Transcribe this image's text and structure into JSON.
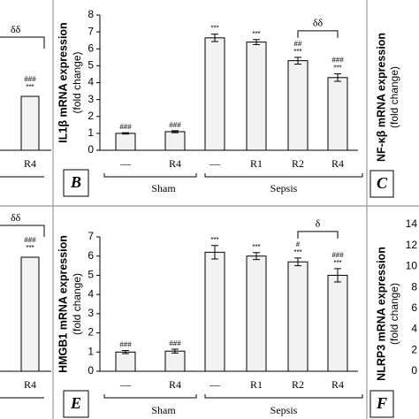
{
  "chart_data": [
    {
      "type": "bar",
      "panel_label": "B",
      "ylabel": "IL1β mRNA expression",
      "ylabel2": "(fold change)",
      "categories": [
        "—",
        "R4",
        "—",
        "R1",
        "R2",
        "R4"
      ],
      "values": [
        1.0,
        1.1,
        6.65,
        6.4,
        5.3,
        4.3
      ],
      "errors": [
        0.04,
        0.06,
        0.22,
        0.15,
        0.2,
        0.22
      ],
      "annotations": [
        [
          "###"
        ],
        [
          "###"
        ],
        [
          "***"
        ],
        [
          "***"
        ],
        [
          "##",
          "***"
        ],
        [
          "###",
          "***"
        ]
      ],
      "bracket_label": "δδ",
      "groups": [
        "Sham",
        "Sepsis"
      ],
      "color": "#f2f2f2",
      "ylim": [
        0,
        8
      ],
      "yticks": [
        0,
        1,
        2,
        3,
        4,
        5,
        6,
        7,
        8
      ]
    },
    {
      "type": "bar",
      "panel_label": "E",
      "ylabel": "HMGB1 mRNA expression",
      "ylabel2": "(fold change)",
      "categories": [
        "—",
        "R4",
        "—",
        "R1",
        "R2",
        "R4"
      ],
      "values": [
        1.0,
        1.05,
        6.2,
        6.0,
        5.7,
        5.0
      ],
      "errors": [
        0.08,
        0.1,
        0.35,
        0.18,
        0.2,
        0.35
      ],
      "annotations": [
        [
          "###"
        ],
        [
          "###"
        ],
        [
          "***"
        ],
        [
          "***"
        ],
        [
          "#",
          "***"
        ],
        [
          "###",
          "***"
        ]
      ],
      "bracket_label": "δ",
      "groups": [
        "Sham",
        "Sepsis"
      ],
      "color": "#f2f2f2",
      "ylim": [
        0,
        7
      ],
      "yticks": [
        0,
        1,
        2,
        3,
        4,
        5,
        6,
        7
      ]
    }
  ],
  "fragments": {
    "left_top": {
      "bracket_label": "δδ",
      "annotations": [
        "###",
        "***"
      ],
      "category": "R4"
    },
    "left_bottom": {
      "bracket_label": "δδ",
      "annotations": [
        "###",
        "***"
      ],
      "category": "R4"
    },
    "right_top": {
      "panel_label": "C",
      "ylabel": "NF-κβ mRNA expression",
      "ylabel2": "(fold change)"
    },
    "right_bottom": {
      "panel_label": "F",
      "ylabel": "NLRP3 mRNA expression",
      "ylabel2": "(fold change)",
      "yticks": [
        0,
        2,
        4,
        6,
        8,
        10,
        12,
        14
      ]
    }
  }
}
